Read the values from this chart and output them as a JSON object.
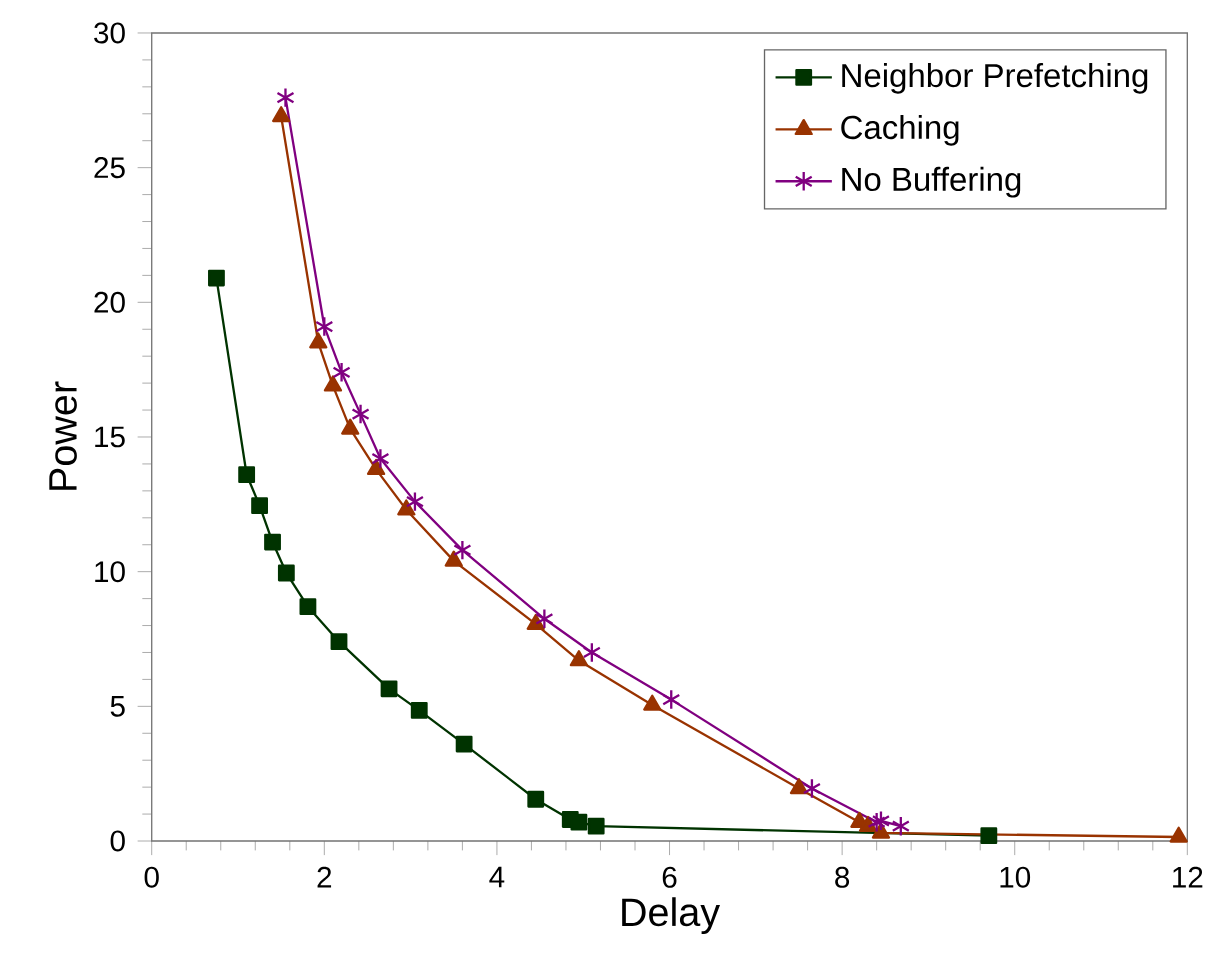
{
  "chart_data": {
    "type": "line",
    "xlabel": "Delay",
    "ylabel": "Power",
    "xlim": [
      0,
      12
    ],
    "ylim": [
      0,
      30
    ],
    "xticks": [
      0,
      2,
      4,
      6,
      8,
      10,
      12
    ],
    "yticks": [
      0,
      5,
      10,
      15,
      20,
      25,
      30
    ],
    "legend": "top right",
    "grid": false,
    "series": [
      {
        "name": "Neighbor Prefetching",
        "color": "#003300",
        "marker": "square",
        "x": [
          0.75,
          1.1,
          1.25,
          1.4,
          1.56,
          1.81,
          2.17,
          2.75,
          3.1,
          3.62,
          4.45,
          4.85,
          4.95,
          5.15,
          9.7
        ],
        "values": [
          20.9,
          13.6,
          12.45,
          11.1,
          9.95,
          8.7,
          7.4,
          5.65,
          4.85,
          3.6,
          1.55,
          0.8,
          0.7,
          0.55,
          0.2
        ]
      },
      {
        "name": "Caching",
        "color": "#993300",
        "marker": "triangle",
        "x": [
          1.5,
          1.93,
          2.1,
          2.3,
          2.6,
          2.95,
          3.5,
          4.45,
          4.95,
          5.8,
          7.5,
          8.2,
          8.3,
          8.45,
          11.9
        ],
        "values": [
          26.9,
          18.5,
          16.9,
          15.3,
          13.8,
          12.3,
          10.4,
          8.05,
          6.7,
          5.05,
          1.95,
          0.7,
          0.55,
          0.3,
          0.15
        ]
      },
      {
        "name": "No Buffering",
        "color": "#800080",
        "marker": "cross",
        "x": [
          1.55,
          2.0,
          2.2,
          2.42,
          2.65,
          3.05,
          3.6,
          4.55,
          5.1,
          6.02,
          7.65,
          8.4,
          8.45,
          8.68
        ],
        "values": [
          27.6,
          19.1,
          17.4,
          15.85,
          14.2,
          12.6,
          10.8,
          8.25,
          7.0,
          5.25,
          1.95,
          0.7,
          0.75,
          0.55
        ]
      }
    ]
  }
}
